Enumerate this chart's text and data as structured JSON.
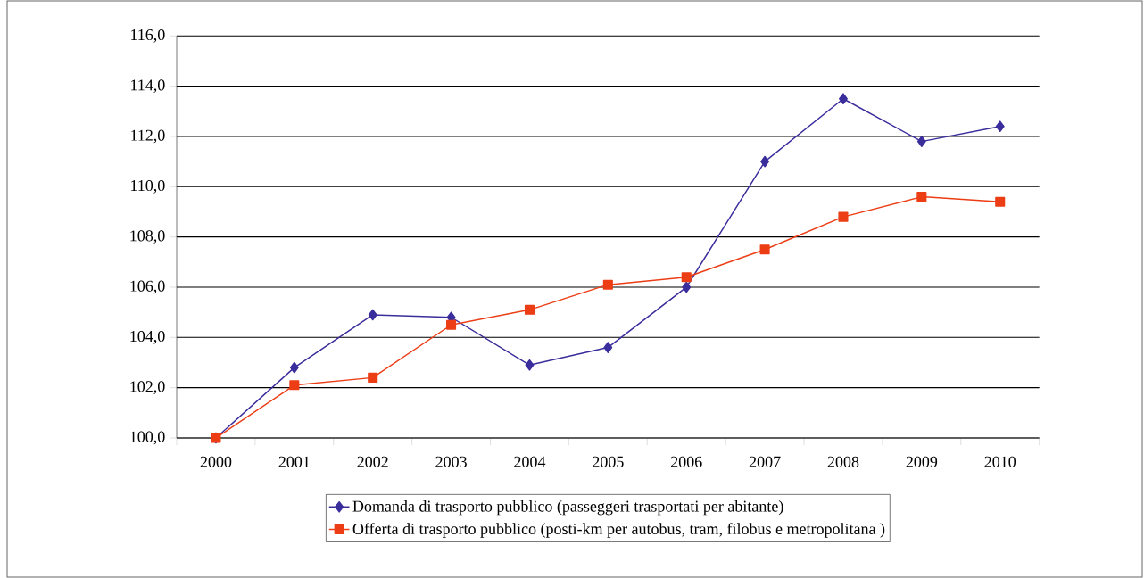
{
  "chart_data": {
    "type": "line",
    "categories": [
      "2000",
      "2001",
      "2002",
      "2003",
      "2004",
      "2005",
      "2006",
      "2007",
      "2008",
      "2009",
      "2010"
    ],
    "series": [
      {
        "name": "Domanda di trasporto pubblico (passeggeri trasportati per abitante)",
        "color": "#3a2d9c",
        "marker": "diamond",
        "values": [
          100.0,
          102.8,
          104.9,
          104.8,
          102.9,
          103.6,
          106.0,
          111.0,
          113.5,
          111.8,
          112.4
        ]
      },
      {
        "name": "Offerta di trasporto pubblico (posti-km per autobus, tram, filobus e metropolitana )",
        "color": "#ec3d15",
        "marker": "square",
        "values": [
          100.0,
          102.1,
          102.4,
          104.5,
          105.1,
          106.1,
          106.4,
          107.5,
          108.8,
          109.6,
          109.4
        ]
      }
    ],
    "ylim": [
      100,
      116
    ],
    "yticks": [
      {
        "value": 100,
        "label": "100,0"
      },
      {
        "value": 102,
        "label": "102,0"
      },
      {
        "value": 104,
        "label": "104,0"
      },
      {
        "value": 106,
        "label": "106,0"
      },
      {
        "value": 108,
        "label": "108,0"
      },
      {
        "value": 110,
        "label": "110,0"
      },
      {
        "value": 112,
        "label": "112,0"
      },
      {
        "value": 114,
        "label": "114,0"
      },
      {
        "value": 116,
        "label": "116,0"
      }
    ],
    "grid": "y",
    "legend": "bottom",
    "line_style": "solid"
  }
}
